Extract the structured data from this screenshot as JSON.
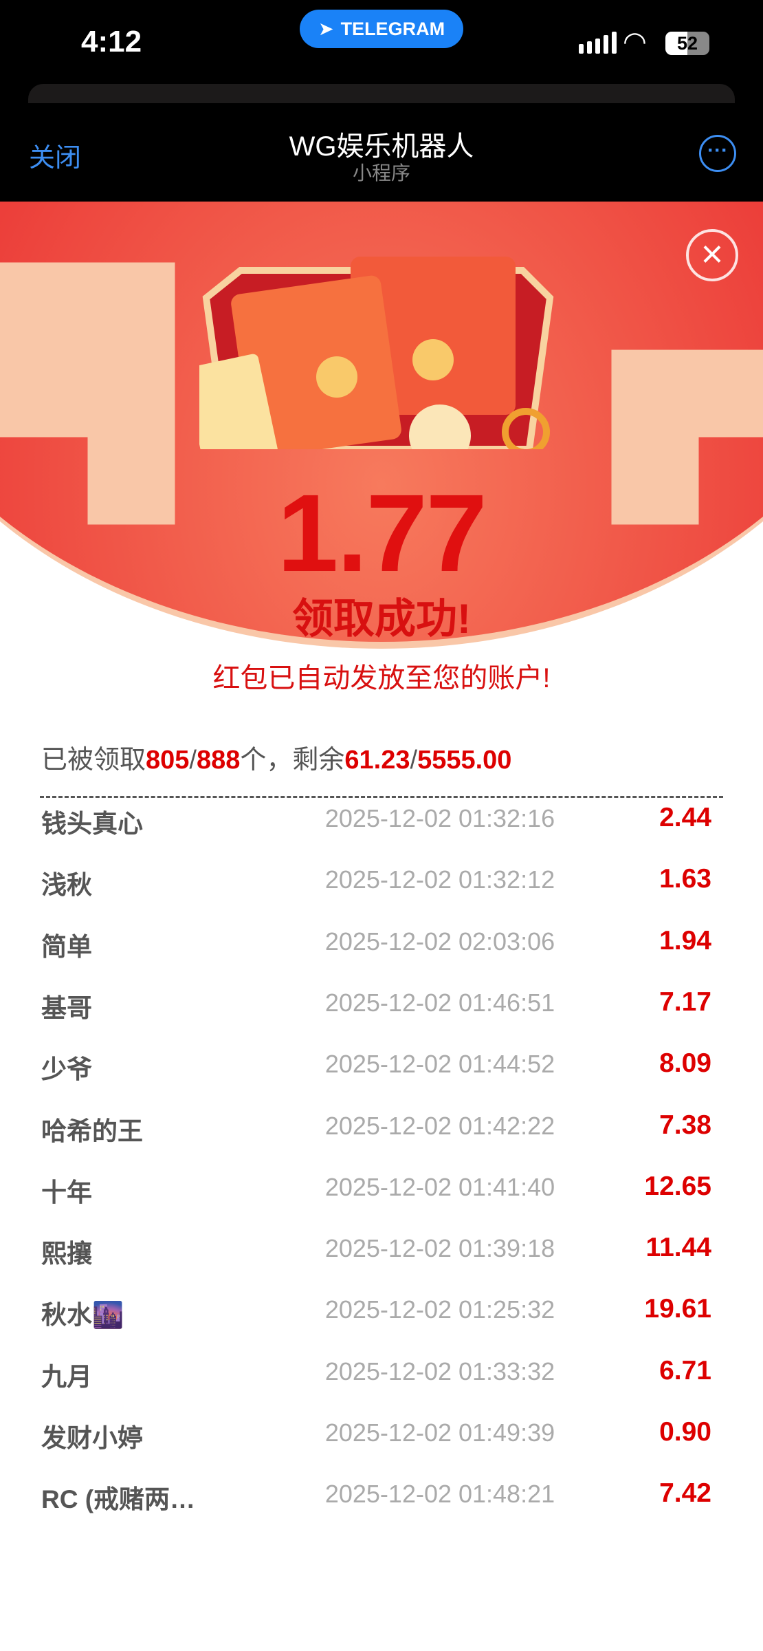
{
  "status_bar": {
    "time": "4:12",
    "pill_label": "TELEGRAM",
    "battery": "52"
  },
  "nav": {
    "close": "关闭",
    "title": "WG娱乐机器人",
    "subtitle": "小程序",
    "more_icon": "ellipsis-circle-icon"
  },
  "result": {
    "amount": "1.77",
    "success": "领取成功!",
    "message": "红包已自动发放至您的账户!"
  },
  "stats": {
    "prefix": "已被领取",
    "claimed": "805",
    "total": "888",
    "unit": "个，剩余",
    "remaining": "61.23",
    "total_amount": "5555.00",
    "slash": "/"
  },
  "colors": {
    "accent": "#e01010",
    "banner": "#ec3f3a",
    "link": "#3d8ef2"
  },
  "records": [
    {
      "name": "钱头真心",
      "time": "2025-12-02 01:32:16",
      "amount": "2.44"
    },
    {
      "name": "浅秋",
      "time": "2025-12-02 01:32:12",
      "amount": "1.63"
    },
    {
      "name": "简单",
      "time": "2025-12-02 02:03:06",
      "amount": "1.94"
    },
    {
      "name": "基哥",
      "time": "2025-12-02 01:46:51",
      "amount": "7.17"
    },
    {
      "name": "少爷",
      "time": "2025-12-02 01:44:52",
      "amount": "8.09"
    },
    {
      "name": "哈希的王",
      "time": "2025-12-02 01:42:22",
      "amount": "7.38"
    },
    {
      "name": "十年",
      "time": "2025-12-02 01:41:40",
      "amount": "12.65"
    },
    {
      "name": "熙攘",
      "time": "2025-12-02 01:39:18",
      "amount": "11.44"
    },
    {
      "name": "秋水🌆",
      "time": "2025-12-02 01:25:32",
      "amount": "19.61"
    },
    {
      "name": "九月",
      "time": "2025-12-02 01:33:32",
      "amount": "6.71"
    },
    {
      "name": "发财小婷",
      "time": "2025-12-02 01:49:39",
      "amount": "0.90"
    },
    {
      "name": "RC (戒赌两…",
      "time": "2025-12-02 01:48:21",
      "amount": "7.42"
    }
  ]
}
